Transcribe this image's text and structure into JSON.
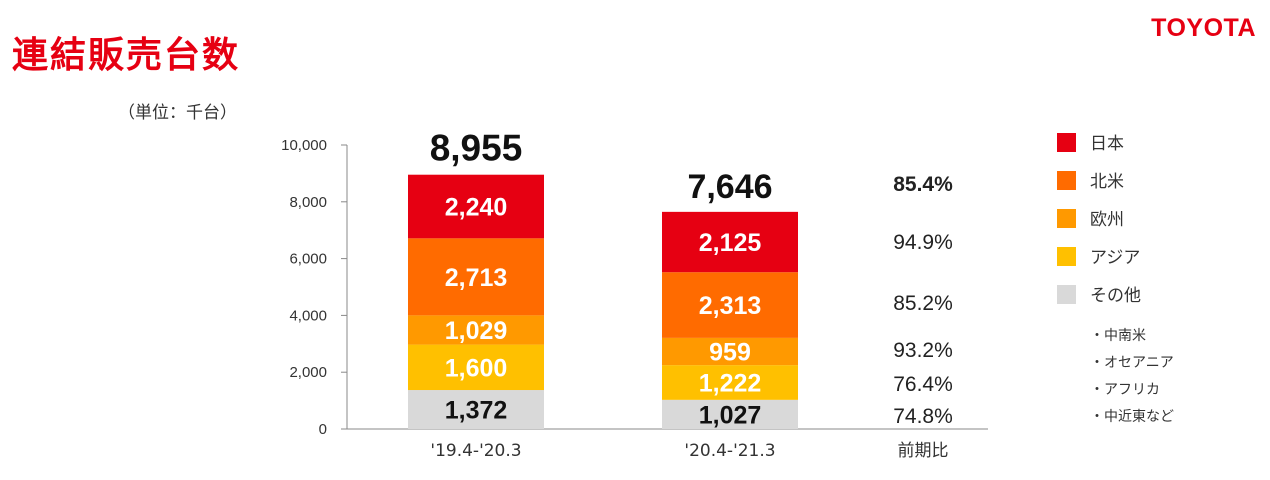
{
  "title": "連結販売台数",
  "logo": "TOYOTA",
  "unit": "（単位：千台）",
  "chart_data": {
    "type": "bar",
    "stacked": true,
    "categories": [
      "'19.4-'20.3",
      "'20.4-'21.3"
    ],
    "ylim": [
      0,
      10000
    ],
    "yticks": [
      "0",
      "2,000",
      "4,000",
      "6,000",
      "8,000",
      "10,000"
    ],
    "series": [
      {
        "name": "その他",
        "values": [
          1372,
          1027
        ],
        "labels": [
          "1,372",
          "1,027"
        ],
        "color": "#d9d9d9",
        "label_color": "#111111"
      },
      {
        "name": "アジア",
        "values": [
          1600,
          1222
        ],
        "labels": [
          "1,600",
          "1,222"
        ],
        "color": "#ffc000",
        "label_color": "#ffffff"
      },
      {
        "name": "欧州",
        "values": [
          1029,
          959
        ],
        "labels": [
          "1,029",
          "959"
        ],
        "color": "#ff9900",
        "label_color": "#ffffff"
      },
      {
        "name": "北米",
        "values": [
          2713,
          2313
        ],
        "labels": [
          "2,713",
          "2,313"
        ],
        "color": "#ff6b00",
        "label_color": "#ffffff"
      },
      {
        "name": "日本",
        "values": [
          2240,
          2125
        ],
        "labels": [
          "2,240",
          "2,125"
        ],
        "color": "#e60012",
        "label_color": "#ffffff"
      }
    ],
    "totals": [
      8955,
      7646
    ],
    "total_labels": [
      "8,955",
      "7,646"
    ],
    "ratio_header": "前期比",
    "ratios": {
      "total": "85.4%",
      "日本": "94.9%",
      "北米": "85.2%",
      "欧州": "93.2%",
      "アジア": "76.4%",
      "その他": "74.8%"
    },
    "legend": [
      "日本",
      "北米",
      "欧州",
      "アジア",
      "その他"
    ],
    "legend_notes": [
      "・中南米",
      "・オセアニア",
      "・アフリカ",
      "・中近東など"
    ],
    "legend_position": "right"
  }
}
